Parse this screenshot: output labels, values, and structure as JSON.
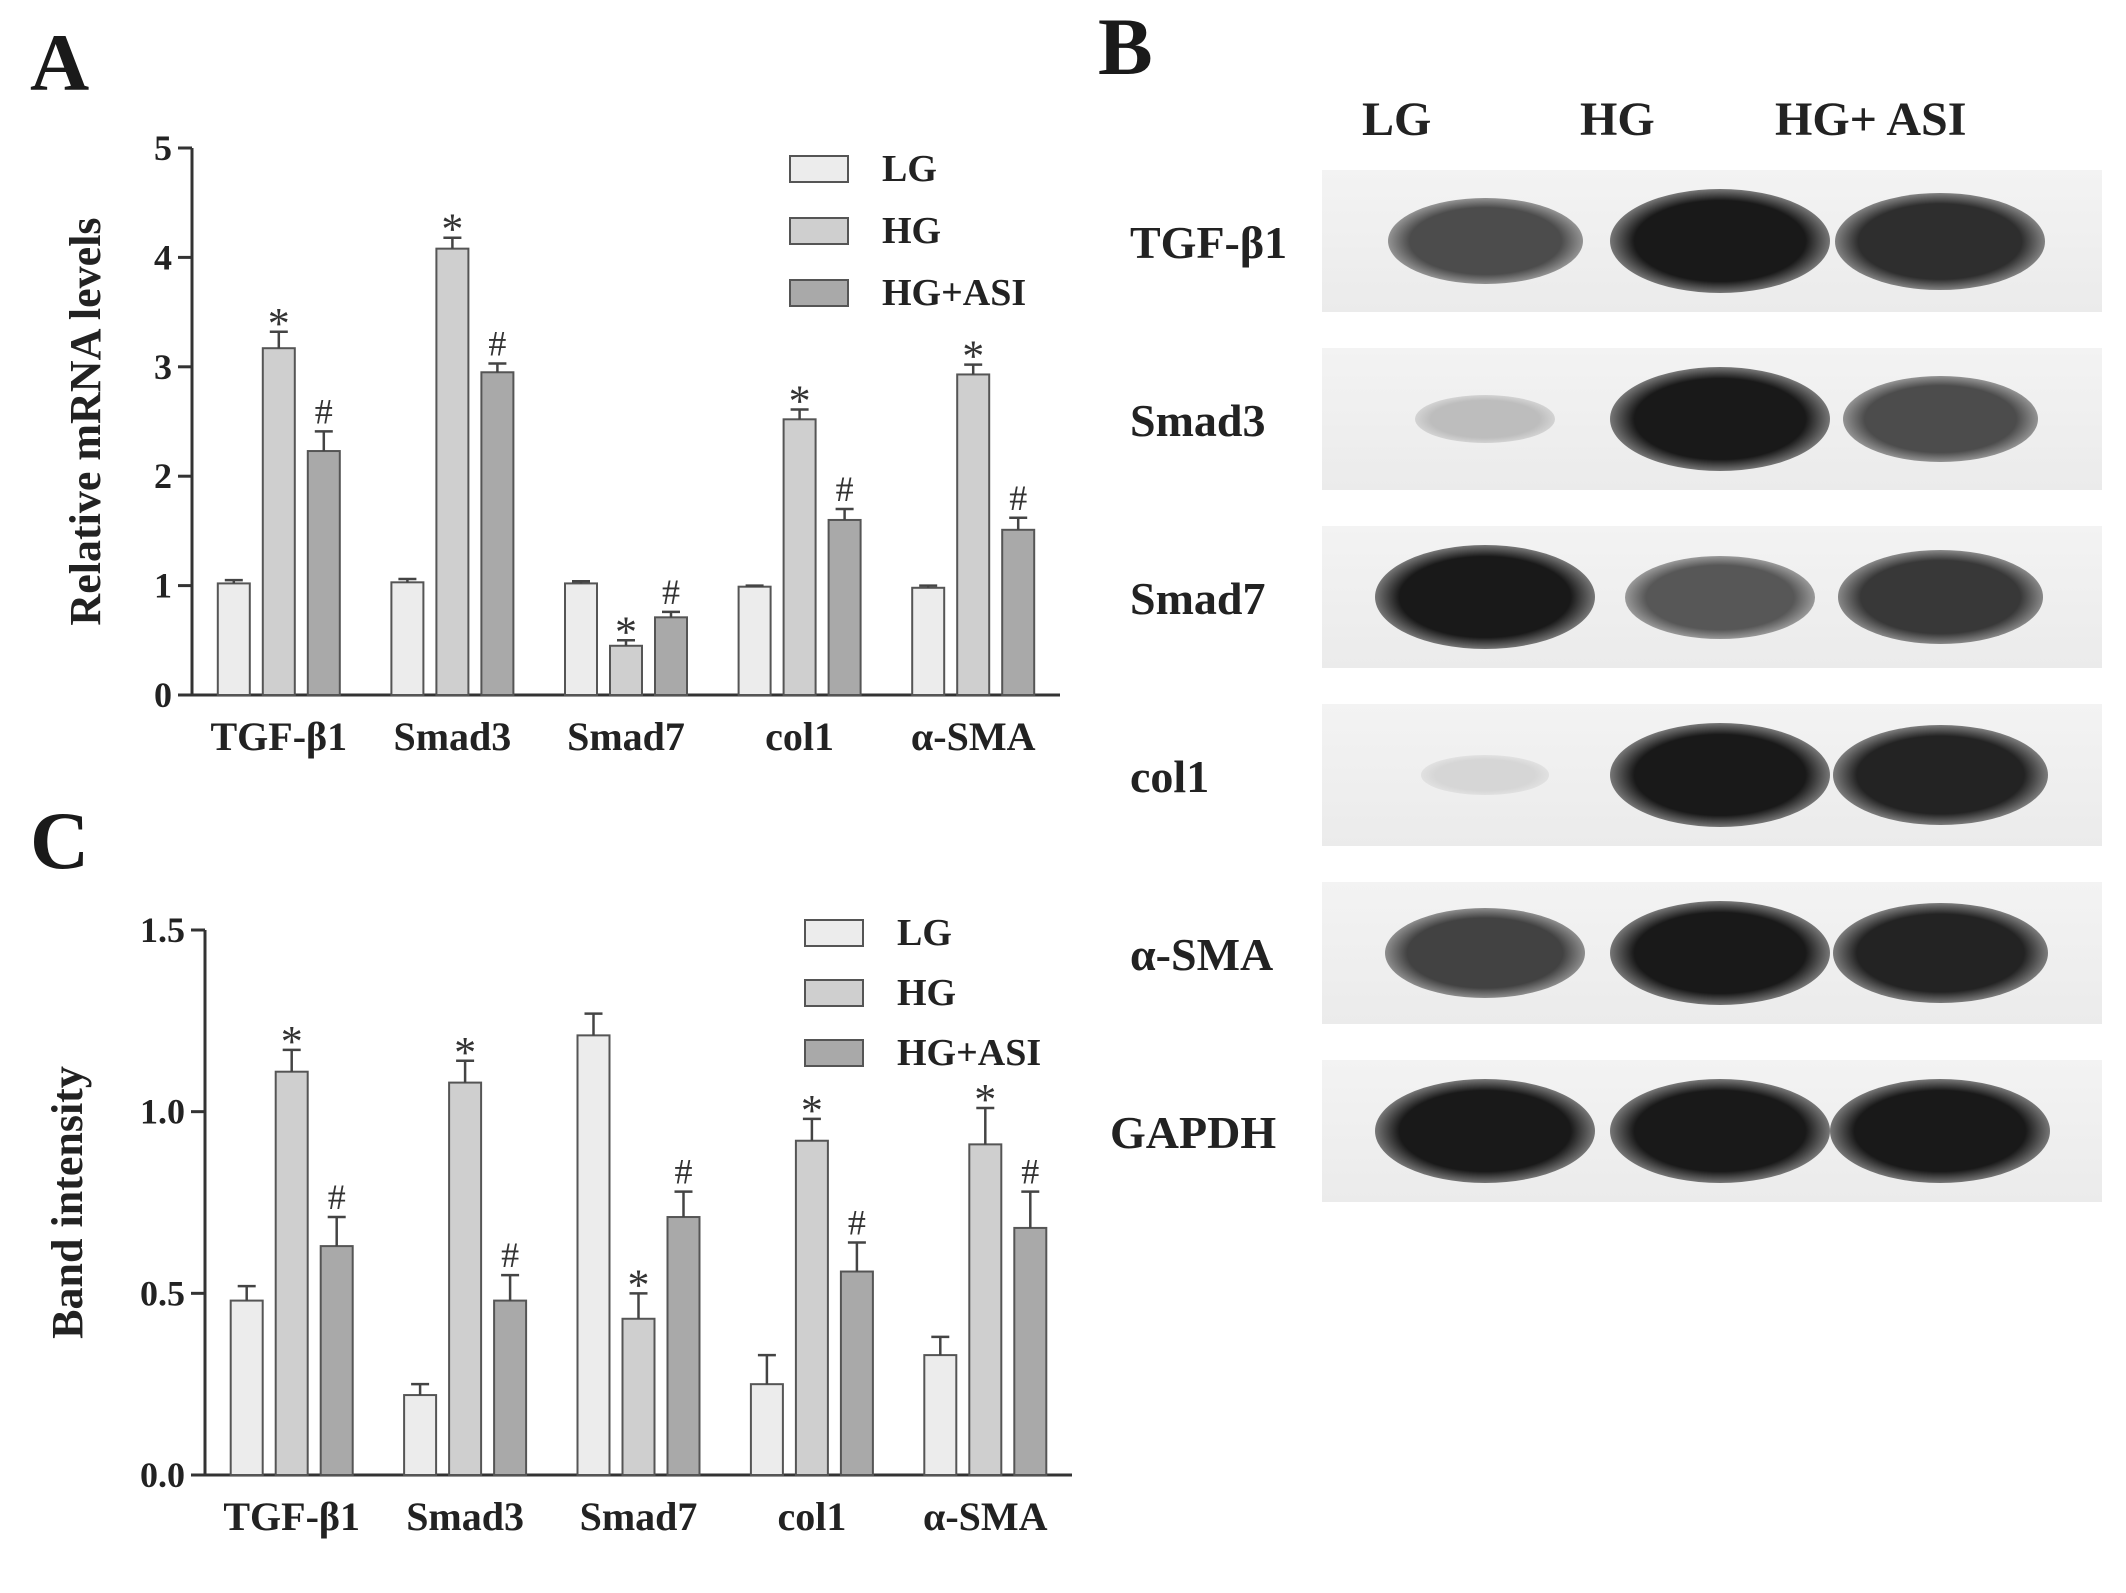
{
  "panels": {
    "a": "A",
    "b": "B",
    "c": "C"
  },
  "chart_data": [
    {
      "id": "A",
      "type": "bar",
      "ylabel": "Relative mRNA levels",
      "ylim": [
        0,
        5
      ],
      "yticks": [
        "0",
        "1",
        "2",
        "3",
        "4",
        "5"
      ],
      "categories": [
        "TGF-β1",
        "Smad3",
        "Smad7",
        "col1",
        "α-SMA"
      ],
      "legend_position": "top-right",
      "series": [
        {
          "name": "LG",
          "color": "#ececec",
          "values": [
            1.02,
            1.03,
            1.02,
            0.99,
            0.98
          ],
          "errors": [
            0.03,
            0.03,
            0.02,
            0.01,
            0.02
          ],
          "marks": [
            "",
            "",
            "",
            "",
            ""
          ]
        },
        {
          "name": "HG",
          "color": "#cfcfcf",
          "values": [
            3.17,
            4.08,
            0.45,
            2.52,
            2.93
          ],
          "errors": [
            0.15,
            0.1,
            0.05,
            0.09,
            0.09
          ],
          "marks": [
            "*",
            "*",
            "*",
            "*",
            "*"
          ]
        },
        {
          "name": "HG+ASI",
          "color": "#a9a9a9",
          "values": [
            2.23,
            2.95,
            0.71,
            1.6,
            1.51
          ],
          "errors": [
            0.18,
            0.08,
            0.05,
            0.1,
            0.11
          ],
          "marks": [
            "#",
            "#",
            "#",
            "#",
            "#"
          ]
        }
      ]
    },
    {
      "id": "C",
      "type": "bar",
      "ylabel": "Band intensity",
      "ylim": [
        0,
        1.5
      ],
      "yticks": [
        "0.0",
        "0.5",
        "1.0",
        "1.5"
      ],
      "categories": [
        "TGF-β1",
        "Smad3",
        "Smad7",
        "col1",
        "α-SMA"
      ],
      "legend_position": "top-right",
      "series": [
        {
          "name": "LG",
          "color": "#ececec",
          "values": [
            0.48,
            0.22,
            1.21,
            0.25,
            0.33
          ],
          "errors": [
            0.04,
            0.03,
            0.06,
            0.08,
            0.05
          ],
          "marks": [
            "",
            "",
            "",
            "",
            ""
          ]
        },
        {
          "name": "HG",
          "color": "#cfcfcf",
          "values": [
            1.11,
            1.08,
            0.43,
            0.92,
            0.91
          ],
          "errors": [
            0.06,
            0.06,
            0.07,
            0.06,
            0.1
          ],
          "marks": [
            "*",
            "*",
            "*",
            "*",
            "*"
          ]
        },
        {
          "name": "HG+ASI",
          "color": "#a9a9a9",
          "values": [
            0.63,
            0.48,
            0.71,
            0.56,
            0.68
          ],
          "errors": [
            0.08,
            0.07,
            0.07,
            0.08,
            0.1
          ],
          "marks": [
            "#",
            "#",
            "#",
            "#",
            "#"
          ]
        }
      ]
    }
  ],
  "blot": {
    "lanes": [
      "LG",
      "HG",
      "HG+ ASI"
    ],
    "proteins": [
      {
        "label": "TGF-β1",
        "bands": [
          0.75,
          1.0,
          0.9
        ]
      },
      {
        "label": "Smad3",
        "bands": [
          0.2,
          1.0,
          0.75
        ]
      },
      {
        "label": "Smad7",
        "bands": [
          1.0,
          0.7,
          0.85
        ]
      },
      {
        "label": "col1",
        "bands": [
          0.08,
          1.0,
          0.95
        ]
      },
      {
        "label": "α-SMA",
        "bands": [
          0.8,
          1.0,
          0.95
        ]
      },
      {
        "label": "GAPDH",
        "bands": [
          1.0,
          1.0,
          1.0
        ]
      }
    ]
  }
}
